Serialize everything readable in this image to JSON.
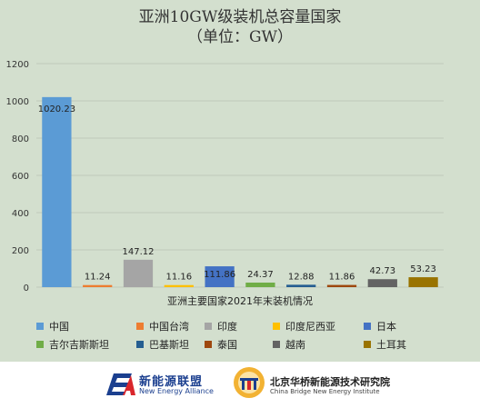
{
  "chart_data": {
    "type": "bar",
    "title": "亚洲10GW级装机总容量国家",
    "subtitle": "（单位：GW）",
    "xlabel": "亚洲主要国家2021年末装机情况",
    "ylabel": "",
    "ylim": [
      0,
      1200
    ],
    "yticks": [
      "0",
      "200",
      "400",
      "600",
      "800",
      "1000",
      "1200"
    ],
    "grid": true,
    "legend_position": "bottom",
    "categories": [
      "中国",
      "中国台湾",
      "印度",
      "印度尼西亚",
      "日本",
      "吉尔吉斯斯坦",
      "巴基斯坦",
      "泰国",
      "越南",
      "土耳其"
    ],
    "values": [
      1020.23,
      11.24,
      147.12,
      11.16,
      111.86,
      24.37,
      12.88,
      11.86,
      42.73,
      53.23
    ],
    "labels": [
      "1020.23",
      "11.24",
      "147.12",
      "11.16",
      "111.86",
      "24.37",
      "12.88",
      "11.86",
      "42.73",
      "53.23"
    ],
    "colors": [
      "#5b9bd5",
      "#ed7d31",
      "#a5a5a5",
      "#ffc000",
      "#4472c4",
      "#70ad47",
      "#255e91",
      "#9e480e",
      "#636363",
      "#997300"
    ]
  },
  "footer": {
    "ea": {
      "cn": "新能源联盟",
      "en": "New Energy Alliance",
      "mark": "EA"
    },
    "cb": {
      "cn": "北京华桥新能源技术研究院",
      "en": "China Bridge New Energy Institute"
    }
  }
}
